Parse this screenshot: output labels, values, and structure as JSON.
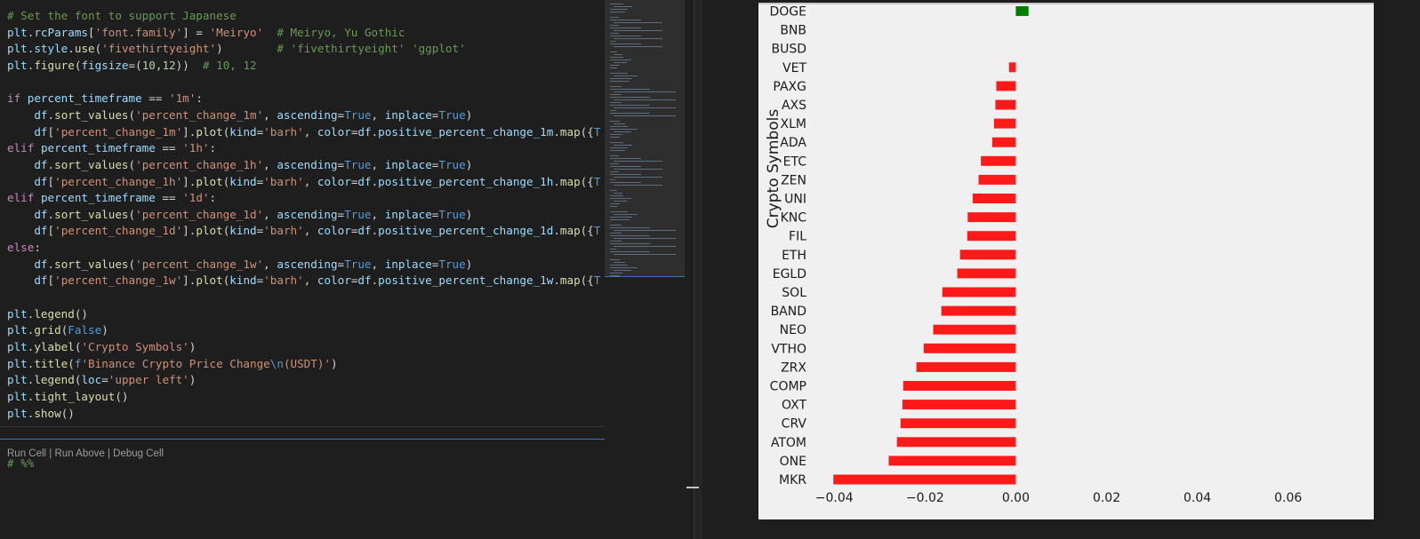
{
  "editor": {
    "lines": [
      [
        [
          "cm",
          "# Set the font to support Japanese"
        ]
      ],
      [
        [
          "vr",
          "plt"
        ],
        [
          "",
          "."
        ],
        [
          "vr",
          "rcParams"
        ],
        [
          "",
          "["
        ],
        [
          "st",
          "'font.family'"
        ],
        [
          "",
          "] = "
        ],
        [
          "st",
          "'Meiryo'"
        ],
        [
          "",
          " "
        ],
        [
          "cm",
          " # Meiryo, Yu Gothic"
        ]
      ],
      [
        [
          "vr",
          "plt"
        ],
        [
          "",
          "."
        ],
        [
          "vr",
          "style"
        ],
        [
          "",
          "."
        ],
        [
          "fn",
          "use"
        ],
        [
          "",
          "("
        ],
        [
          "st",
          "'fivethirtyeight'"
        ],
        [
          "",
          ")"
        ],
        [
          "",
          " "
        ],
        [
          "cm",
          "       # 'fivethirtyeight' 'ggplot'"
        ]
      ],
      [
        [
          "vr",
          "plt"
        ],
        [
          "",
          "."
        ],
        [
          "fn",
          "figure"
        ],
        [
          "",
          "("
        ],
        [
          "vr",
          "figsize"
        ],
        [
          "",
          "=("
        ],
        [
          "nm",
          "10"
        ],
        [
          "",
          ","
        ],
        [
          "nm",
          "12"
        ],
        [
          "",
          "))"
        ],
        [
          "cm",
          "  # 10, 12"
        ]
      ],
      [],
      [
        [
          "kw",
          "if"
        ],
        [
          "",
          " "
        ],
        [
          "vr",
          "percent_timeframe"
        ],
        [
          "",
          " == "
        ],
        [
          "st",
          "'1m'"
        ],
        [
          "",
          ":"
        ]
      ],
      [
        [
          "",
          "    "
        ],
        [
          "vr",
          "df"
        ],
        [
          "",
          "."
        ],
        [
          "fn",
          "sort_values"
        ],
        [
          "",
          "("
        ],
        [
          "st",
          "'percent_change_1m'"
        ],
        [
          "",
          ", "
        ],
        [
          "vr",
          "ascending"
        ],
        [
          "",
          "="
        ],
        [
          "bl",
          "True"
        ],
        [
          "",
          ", "
        ],
        [
          "vr",
          "inplace"
        ],
        [
          "",
          "="
        ],
        [
          "bl",
          "True"
        ],
        [
          "",
          ")"
        ]
      ],
      [
        [
          "",
          "    "
        ],
        [
          "vr",
          "df"
        ],
        [
          "",
          "["
        ],
        [
          "st",
          "'percent_change_1m'"
        ],
        [
          "",
          "]."
        ],
        [
          "fn",
          "plot"
        ],
        [
          "",
          "("
        ],
        [
          "vr",
          "kind"
        ],
        [
          "",
          "="
        ],
        [
          "st",
          "'barh'"
        ],
        [
          "",
          ", "
        ],
        [
          "vr",
          "color"
        ],
        [
          "",
          "="
        ],
        [
          "vr",
          "df"
        ],
        [
          "",
          "."
        ],
        [
          "vr",
          "positive_percent_change_1m"
        ],
        [
          "",
          "."
        ],
        [
          "fn",
          "map"
        ],
        [
          "",
          "({"
        ],
        [
          "bl",
          "T"
        ]
      ],
      [
        [
          "kw",
          "elif"
        ],
        [
          "",
          " "
        ],
        [
          "vr",
          "percent_timeframe"
        ],
        [
          "",
          " == "
        ],
        [
          "st",
          "'1h'"
        ],
        [
          "",
          ":"
        ]
      ],
      [
        [
          "",
          "    "
        ],
        [
          "vr",
          "df"
        ],
        [
          "",
          "."
        ],
        [
          "fn",
          "sort_values"
        ],
        [
          "",
          "("
        ],
        [
          "st",
          "'percent_change_1h'"
        ],
        [
          "",
          ", "
        ],
        [
          "vr",
          "ascending"
        ],
        [
          "",
          "="
        ],
        [
          "bl",
          "True"
        ],
        [
          "",
          ", "
        ],
        [
          "vr",
          "inplace"
        ],
        [
          "",
          "="
        ],
        [
          "bl",
          "True"
        ],
        [
          "",
          ")"
        ]
      ],
      [
        [
          "",
          "    "
        ],
        [
          "vr",
          "df"
        ],
        [
          "",
          "["
        ],
        [
          "st",
          "'percent_change_1h'"
        ],
        [
          "",
          "]."
        ],
        [
          "fn",
          "plot"
        ],
        [
          "",
          "("
        ],
        [
          "vr",
          "kind"
        ],
        [
          "",
          "="
        ],
        [
          "st",
          "'barh'"
        ],
        [
          "",
          ", "
        ],
        [
          "vr",
          "color"
        ],
        [
          "",
          "="
        ],
        [
          "vr",
          "df"
        ],
        [
          "",
          "."
        ],
        [
          "vr",
          "positive_percent_change_1h"
        ],
        [
          "",
          "."
        ],
        [
          "fn",
          "map"
        ],
        [
          "",
          "({"
        ],
        [
          "bl",
          "T"
        ]
      ],
      [
        [
          "kw",
          "elif"
        ],
        [
          "",
          " "
        ],
        [
          "vr",
          "percent_timeframe"
        ],
        [
          "",
          " == "
        ],
        [
          "st",
          "'1d'"
        ],
        [
          "",
          ":"
        ]
      ],
      [
        [
          "",
          "    "
        ],
        [
          "vr",
          "df"
        ],
        [
          "",
          "."
        ],
        [
          "fn",
          "sort_values"
        ],
        [
          "",
          "("
        ],
        [
          "st",
          "'percent_change_1d'"
        ],
        [
          "",
          ", "
        ],
        [
          "vr",
          "ascending"
        ],
        [
          "",
          "="
        ],
        [
          "bl",
          "True"
        ],
        [
          "",
          ", "
        ],
        [
          "vr",
          "inplace"
        ],
        [
          "",
          "="
        ],
        [
          "bl",
          "True"
        ],
        [
          "",
          ")"
        ]
      ],
      [
        [
          "",
          "    "
        ],
        [
          "vr",
          "df"
        ],
        [
          "",
          "["
        ],
        [
          "st",
          "'percent_change_1d'"
        ],
        [
          "",
          "]."
        ],
        [
          "fn",
          "plot"
        ],
        [
          "",
          "("
        ],
        [
          "vr",
          "kind"
        ],
        [
          "",
          "="
        ],
        [
          "st",
          "'barh'"
        ],
        [
          "",
          ", "
        ],
        [
          "vr",
          "color"
        ],
        [
          "",
          "="
        ],
        [
          "vr",
          "df"
        ],
        [
          "",
          "."
        ],
        [
          "vr",
          "positive_percent_change_1d"
        ],
        [
          "",
          "."
        ],
        [
          "fn",
          "map"
        ],
        [
          "",
          "({"
        ],
        [
          "bl",
          "T"
        ]
      ],
      [
        [
          "kw",
          "else"
        ],
        [
          "",
          ":"
        ]
      ],
      [
        [
          "",
          "    "
        ],
        [
          "vr",
          "df"
        ],
        [
          "",
          "."
        ],
        [
          "fn",
          "sort_values"
        ],
        [
          "",
          "("
        ],
        [
          "st",
          "'percent_change_1w'"
        ],
        [
          "",
          ", "
        ],
        [
          "vr",
          "ascending"
        ],
        [
          "",
          "="
        ],
        [
          "bl",
          "True"
        ],
        [
          "",
          ", "
        ],
        [
          "vr",
          "inplace"
        ],
        [
          "",
          "="
        ],
        [
          "bl",
          "True"
        ],
        [
          "",
          ")"
        ]
      ],
      [
        [
          "",
          "    "
        ],
        [
          "vr",
          "df"
        ],
        [
          "",
          "["
        ],
        [
          "st",
          "'percent_change_1w'"
        ],
        [
          "",
          "]."
        ],
        [
          "fn",
          "plot"
        ],
        [
          "",
          "("
        ],
        [
          "vr",
          "kind"
        ],
        [
          "",
          "="
        ],
        [
          "st",
          "'barh'"
        ],
        [
          "",
          ", "
        ],
        [
          "vr",
          "color"
        ],
        [
          "",
          "="
        ],
        [
          "vr",
          "df"
        ],
        [
          "",
          "."
        ],
        [
          "vr",
          "positive_percent_change_1w"
        ],
        [
          "",
          "."
        ],
        [
          "fn",
          "map"
        ],
        [
          "",
          "({"
        ],
        [
          "bl",
          "T"
        ]
      ],
      [],
      [
        [
          "vr",
          "plt"
        ],
        [
          "",
          "."
        ],
        [
          "fn",
          "legend"
        ],
        [
          "",
          "()"
        ]
      ],
      [
        [
          "vr",
          "plt"
        ],
        [
          "",
          "."
        ],
        [
          "fn",
          "grid"
        ],
        [
          "",
          "("
        ],
        [
          "bl",
          "False"
        ],
        [
          "",
          ")"
        ]
      ],
      [
        [
          "vr",
          "plt"
        ],
        [
          "",
          "."
        ],
        [
          "fn",
          "ylabel"
        ],
        [
          "",
          "("
        ],
        [
          "st",
          "'Crypto Symbols'"
        ],
        [
          "",
          ")"
        ]
      ],
      [
        [
          "vr",
          "plt"
        ],
        [
          "",
          "."
        ],
        [
          "fn",
          "title"
        ],
        [
          "",
          "("
        ],
        [
          "bl",
          "f"
        ],
        [
          "st",
          "'Binance Crypto Price Change"
        ],
        [
          "bl",
          "\\n"
        ],
        [
          "st",
          "(USDT)'"
        ],
        [
          "",
          ")"
        ]
      ],
      [
        [
          "vr",
          "plt"
        ],
        [
          "",
          "."
        ],
        [
          "fn",
          "legend"
        ],
        [
          "",
          "("
        ],
        [
          "vr",
          "loc"
        ],
        [
          "",
          "="
        ],
        [
          "st",
          "'upper left'"
        ],
        [
          "",
          ")"
        ]
      ],
      [
        [
          "vr",
          "plt"
        ],
        [
          "",
          "."
        ],
        [
          "fn",
          "tight_layout"
        ],
        [
          "",
          "()"
        ]
      ],
      [
        [
          "vr",
          "plt"
        ],
        [
          "",
          "."
        ],
        [
          "fn",
          "show"
        ],
        [
          "",
          "()"
        ]
      ]
    ],
    "codelens": {
      "run_cell": "Run Cell",
      "sep": " | ",
      "run_above": "Run Above",
      "debug_cell": "Debug Cell"
    },
    "cell_marker": "# %%"
  },
  "chart_data": {
    "type": "bar",
    "orientation": "horizontal",
    "ylabel": "Crypto Symbols",
    "xlim": [
      -0.042,
      0.072
    ],
    "x_ticks": [
      -0.04,
      -0.02,
      0.0,
      0.02,
      0.04,
      0.06
    ],
    "x_tick_labels": [
      "−0.04",
      "−0.02",
      "0.00",
      "0.02",
      "0.04",
      "0.06"
    ],
    "grid": false,
    "positive_color": "#008000",
    "negative_color": "#ff1a1a",
    "categories": [
      "DOGE",
      "BNB",
      "BUSD",
      "VET",
      "PAXG",
      "AXS",
      "XLM",
      "ADA",
      "ETC",
      "ZEN",
      "UNI",
      "KNC",
      "FIL",
      "ETH",
      "EGLD",
      "SOL",
      "BAND",
      "NEO",
      "VTHO",
      "ZRX",
      "COMP",
      "OXT",
      "CRV",
      "ATOM",
      "ONE",
      "MKR"
    ],
    "values": [
      0.0028,
      0.0,
      0.0,
      -0.0015,
      -0.0043,
      -0.0045,
      -0.0048,
      -0.0052,
      -0.0077,
      -0.0082,
      -0.0095,
      -0.0106,
      -0.0107,
      -0.0123,
      -0.0129,
      -0.0162,
      -0.0164,
      -0.0182,
      -0.0203,
      -0.0219,
      -0.0248,
      -0.025,
      -0.0254,
      -0.0262,
      -0.028,
      -0.0402
    ]
  }
}
